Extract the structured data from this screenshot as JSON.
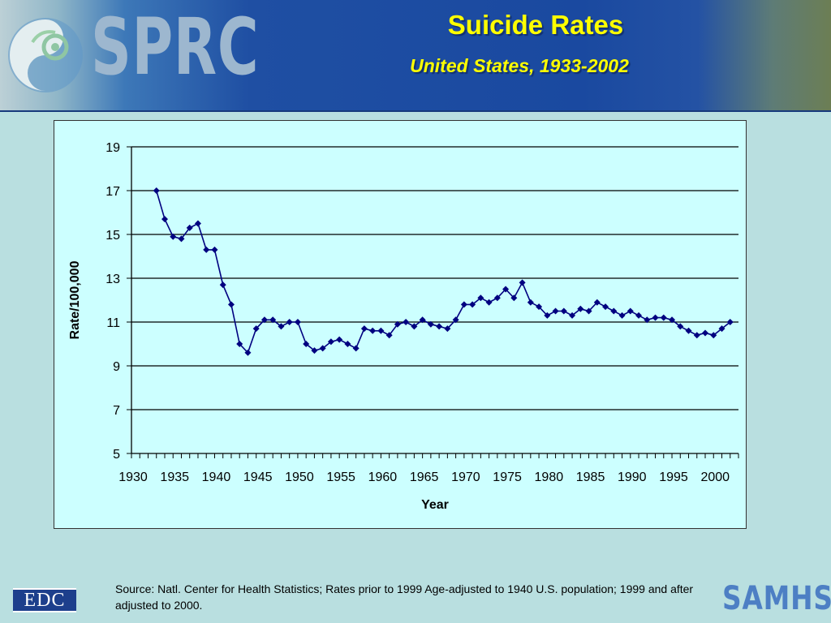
{
  "header": {
    "logo_text": "SPRC",
    "title": "Suicide Rates",
    "subtitle": "United States, 1933-2002"
  },
  "footer": {
    "source": "Source: Natl. Center for Health Statistics; Rates prior to 1999 Age-adjusted to 1940 U.S. population; 1999 and after adjusted to 2000.",
    "edc_logo": "EDC",
    "samhsa_logo": "SAMHSA"
  },
  "colors": {
    "series": "#000080",
    "plot_background": "#ccffff",
    "title": "#ffff00",
    "page_background": "#b9dfe0"
  },
  "chart_data": {
    "type": "line",
    "title": "Suicide Rates",
    "subtitle": "United States, 1933-2002",
    "xlabel": "Year",
    "ylabel": "Rate/100,000",
    "xlim": [
      1930,
      2003
    ],
    "ylim": [
      5,
      19
    ],
    "yticks": [
      5,
      7,
      9,
      11,
      13,
      15,
      17,
      19
    ],
    "xticks": [
      1930,
      1935,
      1940,
      1945,
      1950,
      1955,
      1960,
      1965,
      1970,
      1975,
      1980,
      1985,
      1990,
      1995,
      2000
    ],
    "grid": true,
    "marker": "diamond",
    "series": [
      {
        "x": [
          1933,
          1934,
          1935,
          1936,
          1937,
          1938,
          1939,
          1940,
          1941,
          1942,
          1943,
          1944,
          1945,
          1946,
          1947,
          1948,
          1949,
          1950,
          1951,
          1952,
          1953,
          1954,
          1955,
          1956,
          1957,
          1958,
          1959,
          1960,
          1961,
          1962,
          1963,
          1964,
          1965,
          1966,
          1967,
          1968,
          1969,
          1970,
          1971,
          1972,
          1973,
          1974,
          1975,
          1976,
          1977,
          1978,
          1979,
          1980,
          1981,
          1982,
          1983,
          1984,
          1985,
          1986,
          1987,
          1988,
          1989,
          1990,
          1991,
          1992,
          1993,
          1994,
          1995,
          1996,
          1997,
          1998,
          1999,
          2000,
          2001,
          2002
        ],
        "values": [
          17.0,
          15.7,
          14.9,
          14.8,
          15.3,
          15.5,
          14.3,
          14.3,
          12.7,
          11.8,
          10.0,
          9.6,
          10.7,
          11.1,
          11.1,
          10.8,
          11.0,
          11.0,
          10.0,
          9.7,
          9.8,
          10.1,
          10.2,
          10.0,
          9.8,
          10.7,
          10.6,
          10.6,
          10.4,
          10.9,
          11.0,
          10.8,
          11.1,
          10.9,
          10.8,
          10.7,
          11.1,
          11.8,
          11.8,
          12.1,
          11.9,
          12.1,
          12.5,
          12.1,
          12.8,
          11.9,
          11.7,
          11.3,
          11.5,
          11.5,
          11.3,
          11.6,
          11.5,
          11.9,
          11.7,
          11.5,
          11.3,
          11.5,
          11.3,
          11.1,
          11.2,
          11.2,
          11.1,
          10.8,
          10.6,
          10.4,
          10.5,
          10.4,
          10.7,
          11.0
        ]
      }
    ]
  }
}
